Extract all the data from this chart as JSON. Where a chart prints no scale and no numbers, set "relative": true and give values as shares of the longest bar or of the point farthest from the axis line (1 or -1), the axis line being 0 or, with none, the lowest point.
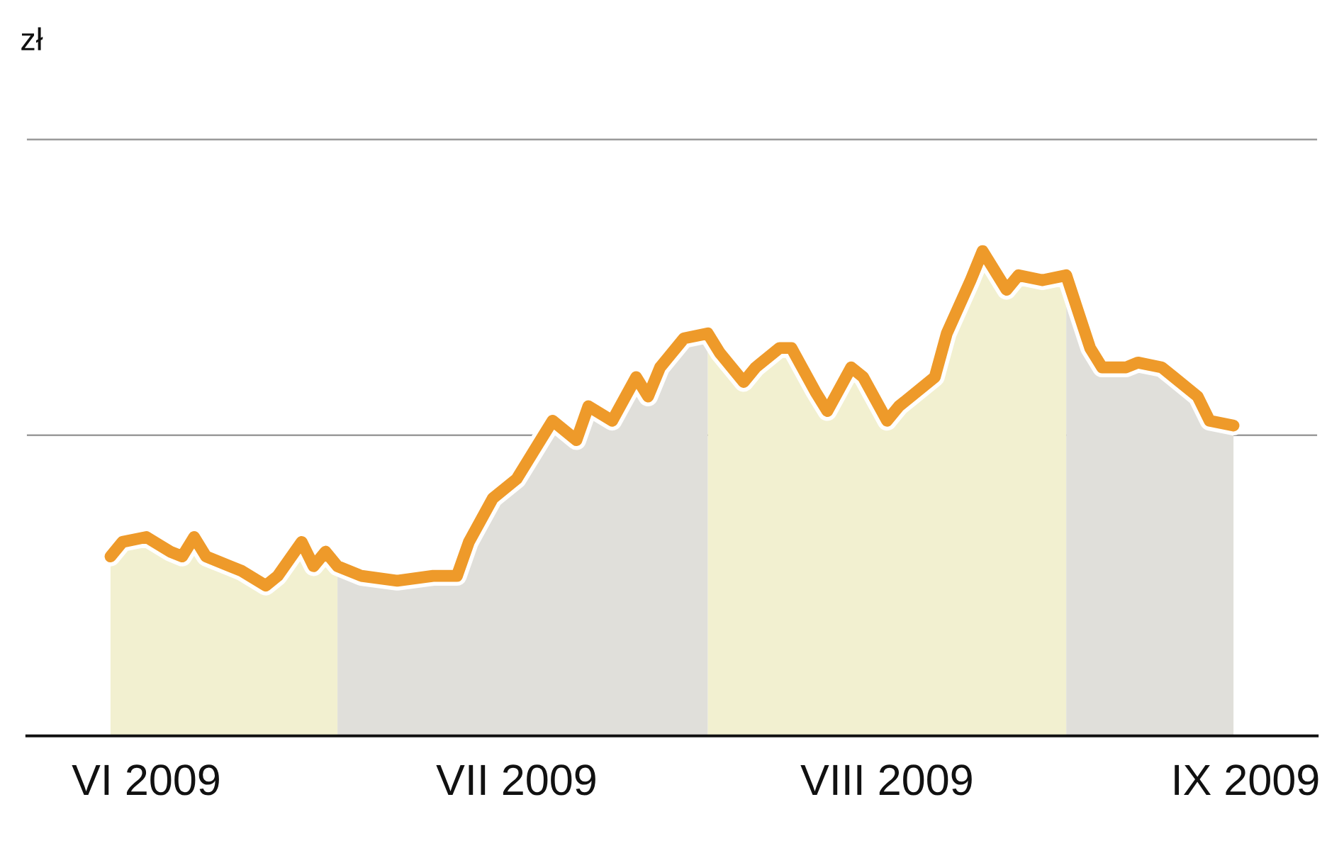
{
  "chart_data": {
    "type": "line",
    "annotations": [
      "zł"
    ],
    "relative": true,
    "x": [
      "2009-06-12",
      "2009-06-13",
      "2009-06-15",
      "2009-06-17",
      "2009-06-18",
      "2009-06-19",
      "2009-06-20",
      "2009-06-22",
      "2009-06-23",
      "2009-06-25",
      "2009-06-26",
      "2009-06-28",
      "2009-06-29",
      "2009-06-30",
      "2009-07-01",
      "2009-07-03",
      "2009-07-06",
      "2009-07-09",
      "2009-07-11",
      "2009-07-12",
      "2009-07-14",
      "2009-07-16",
      "2009-07-18",
      "2009-07-19",
      "2009-07-21",
      "2009-07-22",
      "2009-07-24",
      "2009-07-26",
      "2009-07-27",
      "2009-07-28",
      "2009-07-30",
      "2009-08-01",
      "2009-08-02",
      "2009-08-04",
      "2009-08-05",
      "2009-08-07",
      "2009-08-08",
      "2009-08-10",
      "2009-08-11",
      "2009-08-13",
      "2009-08-14",
      "2009-08-16",
      "2009-08-17",
      "2009-08-20",
      "2009-08-21",
      "2009-08-23",
      "2009-08-24",
      "2009-08-26",
      "2009-08-27",
      "2009-08-29",
      "2009-08-31",
      "2009-09-02",
      "2009-09-03",
      "2009-09-05",
      "2009-09-06",
      "2009-09-08",
      "2009-09-09",
      "2009-09-11",
      "2009-09-12",
      "2009-09-14"
    ],
    "series": [
      {
        "color": "#ee9a2a",
        "values": [
          0.37,
          0.4,
          0.41,
          0.38,
          0.37,
          0.41,
          0.37,
          0.35,
          0.34,
          0.31,
          0.33,
          0.4,
          0.35,
          0.38,
          0.35,
          0.33,
          0.32,
          0.33,
          0.33,
          0.4,
          0.49,
          0.53,
          0.61,
          0.65,
          0.61,
          0.68,
          0.65,
          0.74,
          0.7,
          0.76,
          0.82,
          0.83,
          0.79,
          0.73,
          0.76,
          0.8,
          0.8,
          0.71,
          0.67,
          0.76,
          0.74,
          0.65,
          0.68,
          0.74,
          0.83,
          0.94,
          1.0,
          0.92,
          0.95,
          0.94,
          0.95,
          0.8,
          0.76,
          0.76,
          0.77,
          0.76,
          0.74,
          0.7,
          0.65,
          0.64
        ]
      },
      {
        "type": "area",
        "color": "#f2f0d0",
        "x": [
          "2009-06-12",
          "2009-06-13",
          "2009-06-15",
          "2009-06-17",
          "2009-06-18",
          "2009-06-19",
          "2009-06-20",
          "2009-06-22",
          "2009-06-23",
          "2009-06-25",
          "2009-06-26",
          "2009-06-28",
          "2009-06-29",
          "2009-06-30",
          "2009-07-01"
        ],
        "values": [
          0.37,
          0.4,
          0.41,
          0.38,
          0.37,
          0.41,
          0.37,
          0.35,
          0.34,
          0.31,
          0.33,
          0.4,
          0.35,
          0.38,
          0.35
        ]
      },
      {
        "type": "area",
        "color": "#e0dfda",
        "x": [
          "2009-07-01",
          "2009-07-03",
          "2009-07-06",
          "2009-07-09",
          "2009-07-11",
          "2009-07-12",
          "2009-07-14",
          "2009-07-16",
          "2009-07-18",
          "2009-07-19",
          "2009-07-21",
          "2009-07-22",
          "2009-07-24",
          "2009-07-26",
          "2009-07-27",
          "2009-07-28",
          "2009-07-30",
          "2009-08-01"
        ],
        "values": [
          0.35,
          0.33,
          0.32,
          0.33,
          0.33,
          0.4,
          0.49,
          0.53,
          0.61,
          0.65,
          0.61,
          0.68,
          0.65,
          0.74,
          0.7,
          0.76,
          0.82,
          0.83
        ]
      },
      {
        "type": "area",
        "color": "#f2f0d0",
        "x": [
          "2009-08-01",
          "2009-08-02",
          "2009-08-04",
          "2009-08-05",
          "2009-08-07",
          "2009-08-08",
          "2009-08-10",
          "2009-08-11",
          "2009-08-13",
          "2009-08-14",
          "2009-08-16",
          "2009-08-17",
          "2009-08-20",
          "2009-08-21",
          "2009-08-23",
          "2009-08-24",
          "2009-08-26",
          "2009-08-27",
          "2009-08-29",
          "2009-08-31"
        ],
        "values": [
          0.83,
          0.79,
          0.73,
          0.76,
          0.8,
          0.8,
          0.71,
          0.67,
          0.76,
          0.74,
          0.65,
          0.68,
          0.74,
          0.83,
          0.94,
          1.0,
          0.92,
          0.95,
          0.94,
          0.95
        ]
      },
      {
        "type": "area",
        "color": "#e0dfda",
        "x": [
          "2009-08-31",
          "2009-09-02",
          "2009-09-03",
          "2009-09-05",
          "2009-09-06",
          "2009-09-08",
          "2009-09-09",
          "2009-09-11",
          "2009-09-12",
          "2009-09-14"
        ],
        "values": [
          0.95,
          0.8,
          0.76,
          0.76,
          0.77,
          0.76,
          0.74,
          0.7,
          0.65,
          0.64
        ]
      }
    ],
    "xlim": [
      "2009-06-05",
      "2009-09-21"
    ],
    "xticks": [
      {
        "value": "2009-06-15",
        "label": "VI 2009"
      },
      {
        "value": "2009-07-16",
        "label": "VII 2009"
      },
      {
        "value": "2009-08-16",
        "label": "VIII 2009"
      },
      {
        "value": "2009-09-15",
        "label": "IX 2009"
      }
    ],
    "ref_lines": [
      {
        "axis": "y",
        "value": 0.62,
        "color": "#9a9a9a"
      },
      {
        "axis": "y",
        "value": 1.23,
        "color": "#9a9a9a"
      }
    ],
    "marker": "none",
    "line_style": "solid"
  }
}
